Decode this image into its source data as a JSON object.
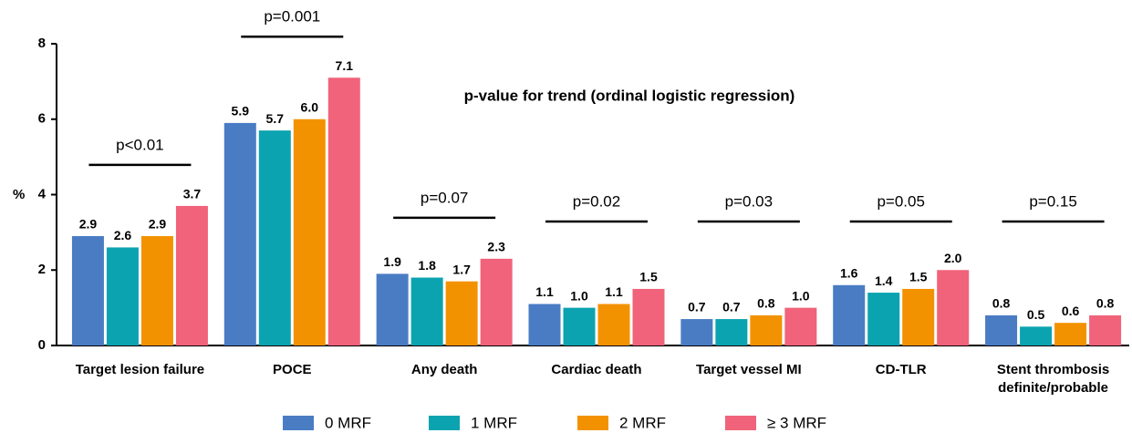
{
  "chart_data": {
    "type": "bar",
    "note": "p-value for trend (ordinal logistic regression)",
    "y_label": "%",
    "categories": [
      "Target lesion failure",
      "POCE",
      "Any death",
      "Cardiac death",
      "Target vessel MI",
      "CD-TLR",
      "Stent thrombosis definite/probable"
    ],
    "annotations": [
      "p<0.01",
      "p=0.001",
      "p=0.07",
      "p=0.02",
      "p=0.03",
      "p=0.05",
      "p=0.15"
    ],
    "series": [
      {
        "name": "0 MRF",
        "color": "#4a7cc4",
        "values": [
          2.9,
          5.9,
          1.9,
          1.1,
          0.7,
          1.6,
          0.8
        ],
        "value_labels": [
          "2.9",
          "5.9",
          "1.9",
          "1.1",
          "0.7",
          "1.6",
          "0.8"
        ]
      },
      {
        "name": "1 MRF",
        "color": "#0ba3b0",
        "values": [
          2.6,
          5.7,
          1.8,
          1.0,
          0.7,
          1.4,
          0.5
        ],
        "value_labels": [
          "2.6",
          "5.7",
          "1.8",
          "1.0",
          "0.7",
          "1.4",
          "0.5"
        ]
      },
      {
        "name": "2 MRF",
        "color": "#f39200",
        "values": [
          2.9,
          6.0,
          1.7,
          1.1,
          0.8,
          1.5,
          0.6
        ],
        "value_labels": [
          "2.9",
          "6.0",
          "1.7",
          "1.1",
          "0.8",
          "1.5",
          "0.6"
        ]
      },
      {
        "name": "≥ 3 MRF",
        "color": "#f0637a",
        "values": [
          3.7,
          7.1,
          2.3,
          1.5,
          1.0,
          2.0,
          0.8
        ],
        "value_labels": [
          "3.7",
          "7.1",
          "2.3",
          "1.5",
          "1.0",
          "2.0",
          "0.8"
        ]
      }
    ],
    "ylim": [
      0,
      8
    ],
    "yticks": [
      0,
      2,
      4,
      6,
      8
    ]
  }
}
